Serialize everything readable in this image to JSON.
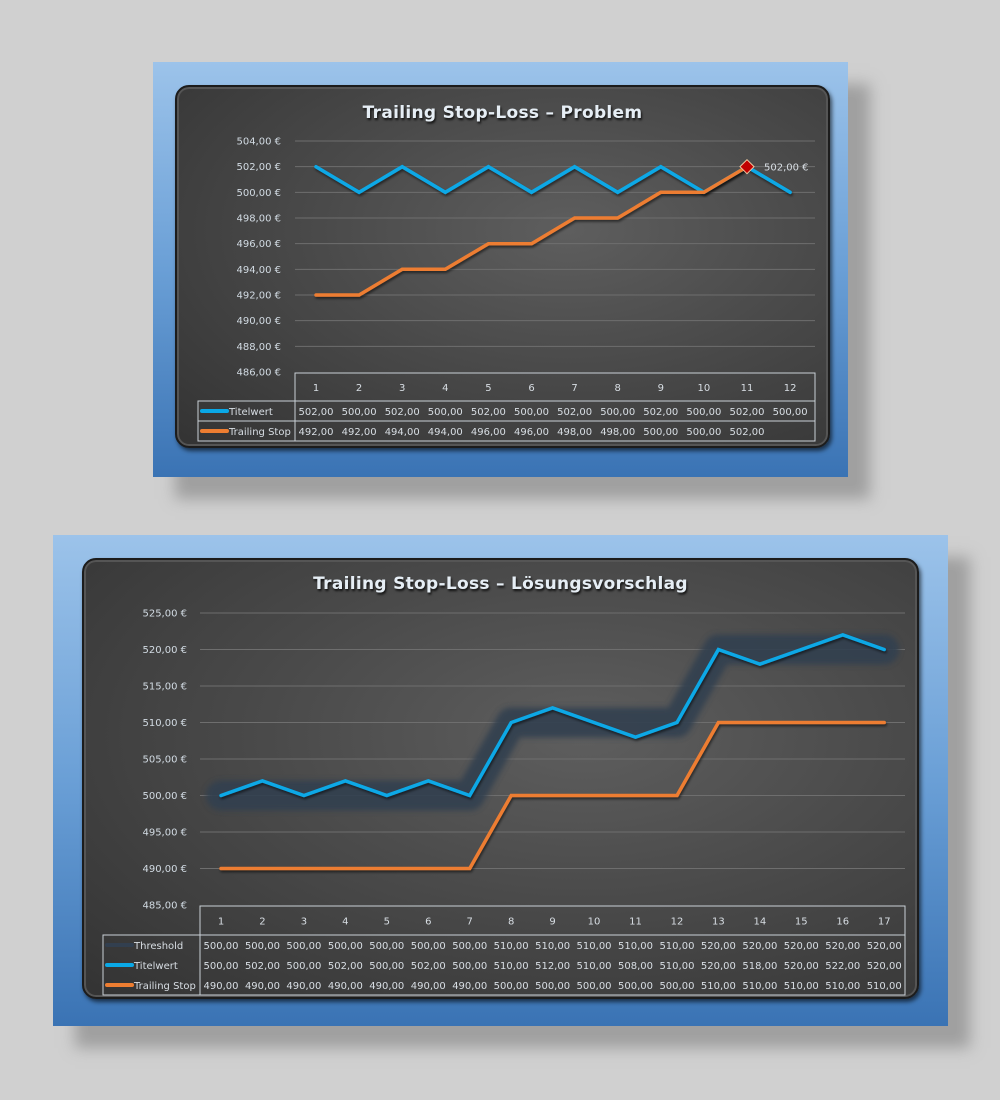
{
  "chart_data": [
    {
      "type": "line",
      "title": "Trailing Stop-Loss – Problem",
      "xlabel": "",
      "ylabel": "",
      "x": [
        1,
        2,
        3,
        4,
        5,
        6,
        7,
        8,
        9,
        10,
        11,
        12
      ],
      "ylim": [
        486,
        504
      ],
      "ytick_step": 2,
      "y_tick_labels": [
        "504,00 €",
        "502,00 €",
        "500,00 €",
        "498,00 €",
        "496,00 €",
        "494,00 €",
        "492,00 €",
        "490,00 €",
        "488,00 €",
        "486,00 €"
      ],
      "grid": true,
      "legend_position": "data-table-bottom",
      "series": [
        {
          "name": "Titelwert",
          "color": "#0aa8e6",
          "values": [
            502,
            500,
            502,
            500,
            502,
            500,
            502,
            500,
            502,
            500,
            502,
            500
          ],
          "labels": [
            "502,00",
            "500,00",
            "502,00",
            "500,00",
            "502,00",
            "500,00",
            "502,00",
            "500,00",
            "502,00",
            "500,00",
            "502,00",
            "500,00"
          ]
        },
        {
          "name": "Trailing Stop",
          "color": "#ed7d31",
          "values": [
            492,
            492,
            494,
            494,
            496,
            496,
            498,
            498,
            500,
            500,
            502,
            null
          ],
          "labels": [
            "492,00",
            "492,00",
            "494,00",
            "494,00",
            "496,00",
            "496,00",
            "498,00",
            "498,00",
            "500,00",
            "500,00",
            "502,00",
            ""
          ]
        }
      ],
      "annotations": [
        {
          "x": 11,
          "y": 502,
          "marker": "diamond",
          "color": "#c00000",
          "label": "502,00 €"
        }
      ]
    },
    {
      "type": "line",
      "title": "Trailing Stop-Loss – Lösungsvorschlag",
      "xlabel": "",
      "ylabel": "",
      "x": [
        1,
        2,
        3,
        4,
        5,
        6,
        7,
        8,
        9,
        10,
        11,
        12,
        13,
        14,
        15,
        16,
        17
      ],
      "ylim": [
        485,
        525
      ],
      "ytick_step": 5,
      "y_tick_labels": [
        "525,00 €",
        "520,00 €",
        "515,00 €",
        "510,00 €",
        "505,00 €",
        "500,00 €",
        "495,00 €",
        "490,00 €",
        "485,00 €"
      ],
      "grid": true,
      "legend_position": "data-table-bottom",
      "series": [
        {
          "name": "Threshold",
          "color": "#323f4f",
          "values": [
            500,
            500,
            500,
            500,
            500,
            500,
            500,
            510,
            510,
            510,
            510,
            510,
            520,
            520,
            520,
            520,
            520
          ],
          "labels": [
            "500,00",
            "500,00",
            "500,00",
            "500,00",
            "500,00",
            "500,00",
            "500,00",
            "510,00",
            "510,00",
            "510,00",
            "510,00",
            "510,00",
            "520,00",
            "520,00",
            "520,00",
            "520,00",
            "520,00"
          ]
        },
        {
          "name": "Titelwert",
          "color": "#0aa8e6",
          "values": [
            500,
            502,
            500,
            502,
            500,
            502,
            500,
            510,
            512,
            510,
            508,
            510,
            520,
            518,
            520,
            522,
            520
          ],
          "labels": [
            "500,00",
            "502,00",
            "500,00",
            "502,00",
            "500,00",
            "502,00",
            "500,00",
            "510,00",
            "512,00",
            "510,00",
            "508,00",
            "510,00",
            "520,00",
            "518,00",
            "520,00",
            "522,00",
            "520,00"
          ]
        },
        {
          "name": "Trailing Stop",
          "color": "#ed7d31",
          "values": [
            490,
            490,
            490,
            490,
            490,
            490,
            490,
            500,
            500,
            500,
            500,
            500,
            510,
            510,
            510,
            510,
            510
          ],
          "labels": [
            "490,00",
            "490,00",
            "490,00",
            "490,00",
            "490,00",
            "490,00",
            "490,00",
            "500,00",
            "500,00",
            "500,00",
            "500,00",
            "500,00",
            "510,00",
            "510,00",
            "510,00",
            "510,00",
            "510,00"
          ]
        }
      ]
    }
  ]
}
